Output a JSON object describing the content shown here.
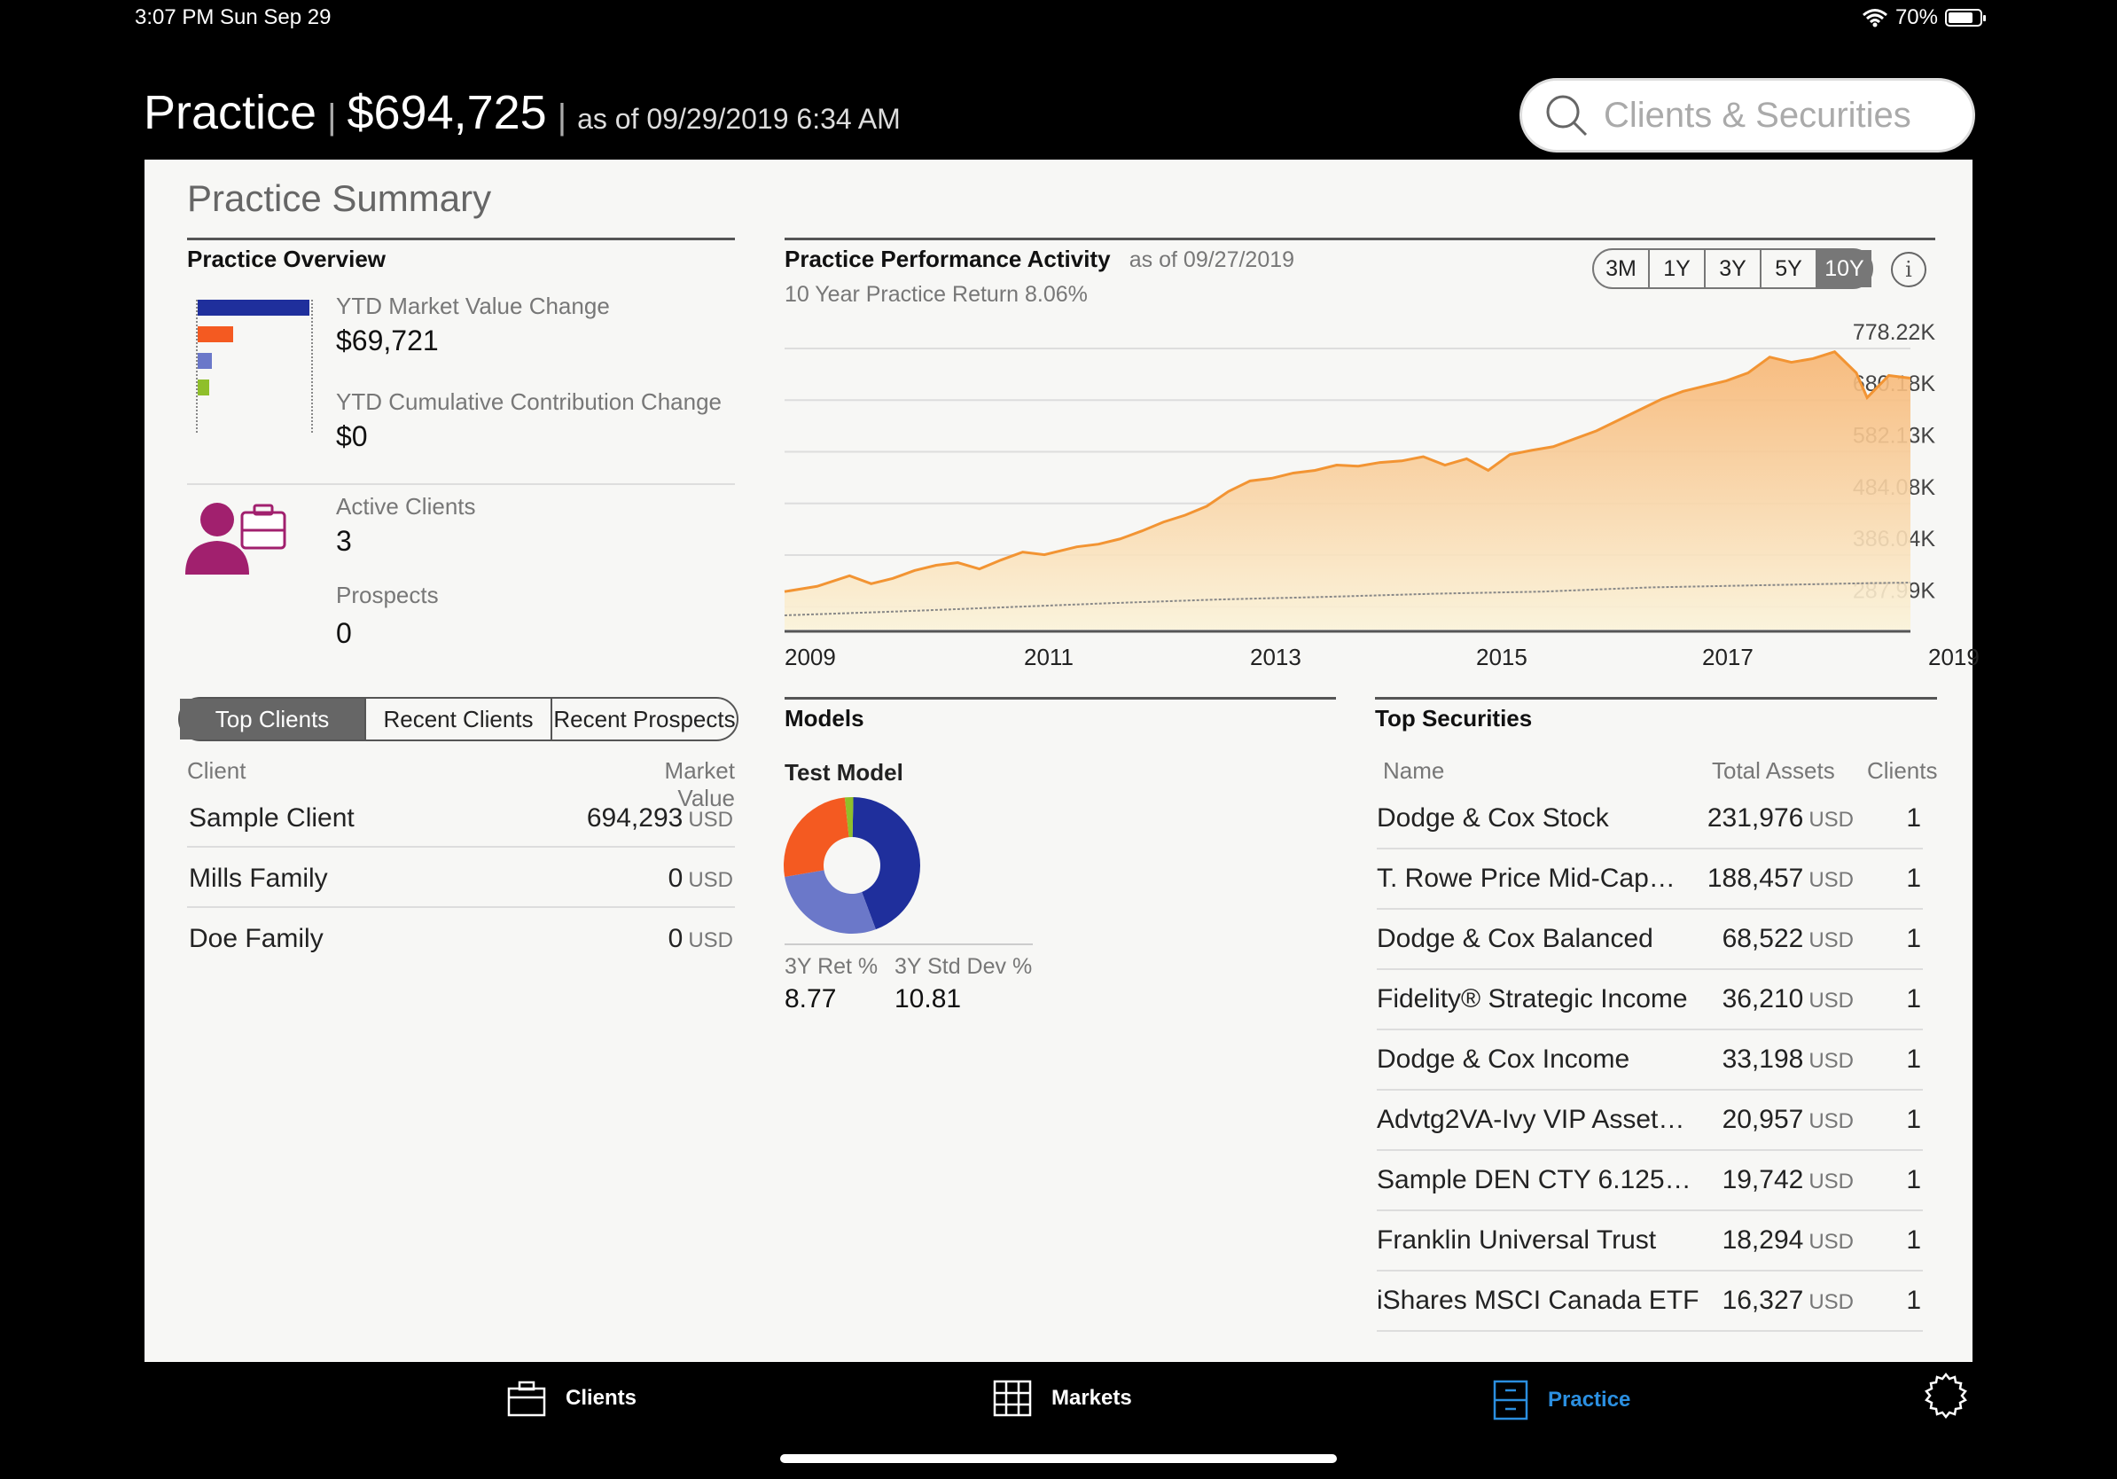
{
  "status": {
    "time": "3:07 PM   Sun Sep 29",
    "battery": "70%"
  },
  "header": {
    "name": "Practice",
    "value": "$694,725",
    "asof": "as of 09/29/2019 6:34 AM"
  },
  "search": {
    "placeholder": "Clients & Securities"
  },
  "summary": {
    "title": "Practice Summary",
    "overview": {
      "heading": "Practice Overview",
      "ytd_mv_label": "YTD Market Value Change",
      "ytd_mv_value": "$69,721",
      "ytd_cc_label": "YTD Cumulative Contribution Change",
      "ytd_cc_value": "$0",
      "bars": [
        {
          "color": "#1f2f9c",
          "share": 1.0
        },
        {
          "color": "#f45a21",
          "share": 0.32
        },
        {
          "color": "#6b78c9",
          "share": 0.13
        },
        {
          "color": "#8fbf2a",
          "share": 0.1
        }
      ],
      "active_clients_label": "Active Clients",
      "active_clients_value": "3",
      "prospects_label": "Prospects",
      "prospects_value": "0"
    },
    "client_tabs": [
      "Top Clients",
      "Recent Clients",
      "Recent Prospects"
    ],
    "client_table": {
      "col_client": "Client",
      "col_mv": "Market Value",
      "rows": [
        {
          "name": "Sample Client",
          "value": "694,293",
          "unit": "USD"
        },
        {
          "name": "Mills Family",
          "value": "0",
          "unit": "USD"
        },
        {
          "name": "Doe Family",
          "value": "0",
          "unit": "USD"
        }
      ]
    },
    "performance": {
      "heading": "Practice Performance Activity",
      "asof": "as of 09/27/2019",
      "return_text": "10 Year Practice Return 8.06%",
      "ranges": [
        "3M",
        "1Y",
        "3Y",
        "5Y",
        "10Y"
      ],
      "active_range": "10Y",
      "info_icon": "info-icon"
    },
    "models": {
      "heading": "Models",
      "model_name": "Test Model",
      "ret_label": "3Y Ret %",
      "ret_value": "8.77",
      "std_label": "3Y Std Dev %",
      "std_value": "10.81"
    },
    "securities": {
      "heading": "Top Securities",
      "col_name": "Name",
      "col_assets": "Total Assets",
      "col_clients": "Clients",
      "rows": [
        {
          "name": "Dodge & Cox Stock",
          "assets": "231,976",
          "unit": "USD",
          "clients": "1"
        },
        {
          "name": "T. Rowe Price Mid-Cap…",
          "assets": "188,457",
          "unit": "USD",
          "clients": "1"
        },
        {
          "name": "Dodge & Cox Balanced",
          "assets": "68,522",
          "unit": "USD",
          "clients": "1"
        },
        {
          "name": "Fidelity® Strategic Income",
          "assets": "36,210",
          "unit": "USD",
          "clients": "1"
        },
        {
          "name": "Dodge & Cox Income",
          "assets": "33,198",
          "unit": "USD",
          "clients": "1"
        },
        {
          "name": "Advtg2VA-Ivy VIP Asset…",
          "assets": "20,957",
          "unit": "USD",
          "clients": "1"
        },
        {
          "name": "Sample DEN CTY 6.125…",
          "assets": "19,742",
          "unit": "USD",
          "clients": "1"
        },
        {
          "name": "Franklin Universal Trust",
          "assets": "18,294",
          "unit": "USD",
          "clients": "1"
        },
        {
          "name": "iShares MSCI Canada ETF",
          "assets": "16,327",
          "unit": "USD",
          "clients": "1"
        }
      ]
    }
  },
  "nav": {
    "clients": "Clients",
    "markets": "Markets",
    "practice": "Practice",
    "active": "Practice"
  },
  "colors": {
    "accent_orange": "#f29433",
    "nav_active": "#2b8fe0",
    "panel_bg": "#f7f7f5"
  },
  "chart_data": [
    {
      "type": "area",
      "title": "Practice Performance Activity",
      "xlabel": "",
      "ylabel": "",
      "x_ticks": [
        "2009",
        "2011",
        "2013",
        "2015",
        "2017",
        "2019"
      ],
      "y_ticks": [
        "778.22K",
        "680.18K",
        "582.13K",
        "484.08K",
        "386.04K",
        "287.99K"
      ],
      "ylim": [
        228000,
        800000
      ],
      "grid": true,
      "series": [
        {
          "name": "",
          "color": "#f29433",
          "x": [
            2009.0,
            2009.3,
            2009.6,
            2009.8,
            2010.0,
            2010.2,
            2010.4,
            2010.6,
            2010.8,
            2011.0,
            2011.2,
            2011.4,
            2011.7,
            2011.9,
            2012.1,
            2012.3,
            2012.5,
            2012.7,
            2012.9,
            2013.1,
            2013.3,
            2013.5,
            2013.7,
            2013.9,
            2014.1,
            2014.3,
            2014.5,
            2014.7,
            2014.9,
            2015.1,
            2015.3,
            2015.5,
            2015.7,
            2015.9,
            2016.1,
            2016.3,
            2016.5,
            2016.7,
            2016.9,
            2017.1,
            2017.3,
            2017.5,
            2017.7,
            2017.9,
            2018.1,
            2018.3,
            2018.5,
            2018.7,
            2018.9,
            2019.0,
            2019.2,
            2019.4
          ],
          "values": [
            300000,
            310000,
            330000,
            315000,
            325000,
            340000,
            350000,
            355000,
            343000,
            360000,
            375000,
            370000,
            385000,
            390000,
            400000,
            415000,
            432000,
            445000,
            462000,
            490000,
            510000,
            515000,
            525000,
            530000,
            540000,
            538000,
            545000,
            548000,
            556000,
            540000,
            552000,
            530000,
            560000,
            568000,
            575000,
            590000,
            605000,
            625000,
            645000,
            665000,
            680000,
            690000,
            700000,
            715000,
            745000,
            735000,
            742000,
            755000,
            715000,
            668000,
            710000,
            705000
          ]
        },
        {
          "name": "",
          "color": "#888888",
          "x": [
            2009.0,
            2010.0,
            2011.0,
            2012.0,
            2013.0,
            2014.0,
            2015.0,
            2016.0,
            2017.0,
            2018.0,
            2019.0,
            2019.4
          ],
          "values": [
            255000,
            262000,
            270000,
            278000,
            285000,
            290000,
            296000,
            300000,
            308000,
            312000,
            316000,
            317000
          ]
        }
      ]
    },
    {
      "type": "pie",
      "title": "Test Model",
      "donut": true,
      "slices": [
        {
          "color": "#1f2f9c",
          "value": 44
        },
        {
          "color": "#6b78c9",
          "value": 28
        },
        {
          "color": "#f45a21",
          "value": 26
        },
        {
          "color": "#8fbf2a",
          "value": 2
        }
      ]
    }
  ]
}
